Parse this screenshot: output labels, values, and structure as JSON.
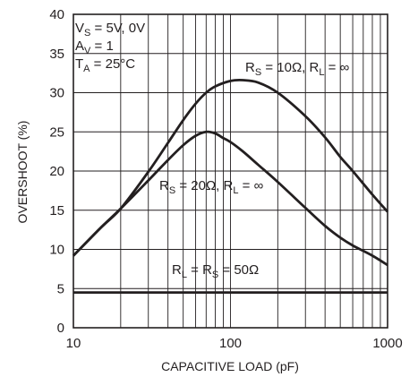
{
  "chart_data": {
    "type": "line",
    "x_scale": "log",
    "xlabel": "CAPACITIVE LOAD (pF)",
    "ylabel": "OVERSHOOT (%)",
    "xlim": [
      10,
      1000
    ],
    "ylim": [
      0,
      40
    ],
    "x_tick_labels": [
      "10",
      "100",
      "1000"
    ],
    "y_tick_labels": [
      "0",
      "5",
      "10",
      "15",
      "20",
      "25",
      "30",
      "35",
      "40"
    ],
    "grid": true,
    "conditions": {
      "vs": {
        "main": "V",
        "sub": "S",
        "rest": " = 5V, 0V"
      },
      "av": {
        "main": "A",
        "sub": "V",
        "rest": " = 1"
      },
      "ta": {
        "main": "T",
        "sub": "A",
        "rest": " = 25°C"
      }
    },
    "series": [
      {
        "label": {
          "p1": "R",
          "s1": "S",
          "p2": " = 10Ω, R",
          "s2": "L",
          "p3": " = ∞"
        },
        "x": [
          10,
          15,
          20,
          30,
          40,
          50,
          60,
          70,
          80,
          100,
          120,
          150,
          200,
          300,
          400,
          500,
          600,
          800,
          1000
        ],
        "y": [
          9.2,
          12.8,
          15.2,
          19.9,
          23.6,
          26.5,
          28.6,
          30.0,
          30.8,
          31.5,
          31.6,
          31.3,
          30.0,
          27.0,
          24.3,
          21.8,
          20.0,
          17.0,
          14.8
        ]
      },
      {
        "label": {
          "p1": "R",
          "s1": "S",
          "p2": " = 20Ω, R",
          "s2": "L",
          "p3": " = ∞"
        },
        "x": [
          10,
          15,
          20,
          30,
          40,
          50,
          60,
          70,
          80,
          90,
          100,
          120,
          150,
          200,
          300,
          400,
          500,
          600,
          800,
          1000
        ],
        "y": [
          9.2,
          12.8,
          15.2,
          18.8,
          21.4,
          23.3,
          24.5,
          25.0,
          24.8,
          24.2,
          23.7,
          22.5,
          20.8,
          18.6,
          15.3,
          13.0,
          11.5,
          10.5,
          9.2,
          8.0
        ]
      },
      {
        "label": {
          "p1": "R",
          "s1": "L",
          "p2": " = R",
          "s2": "S",
          "p3": " = 50Ω"
        },
        "x": [
          10,
          1000
        ],
        "y": [
          4.5,
          4.5
        ]
      }
    ]
  }
}
